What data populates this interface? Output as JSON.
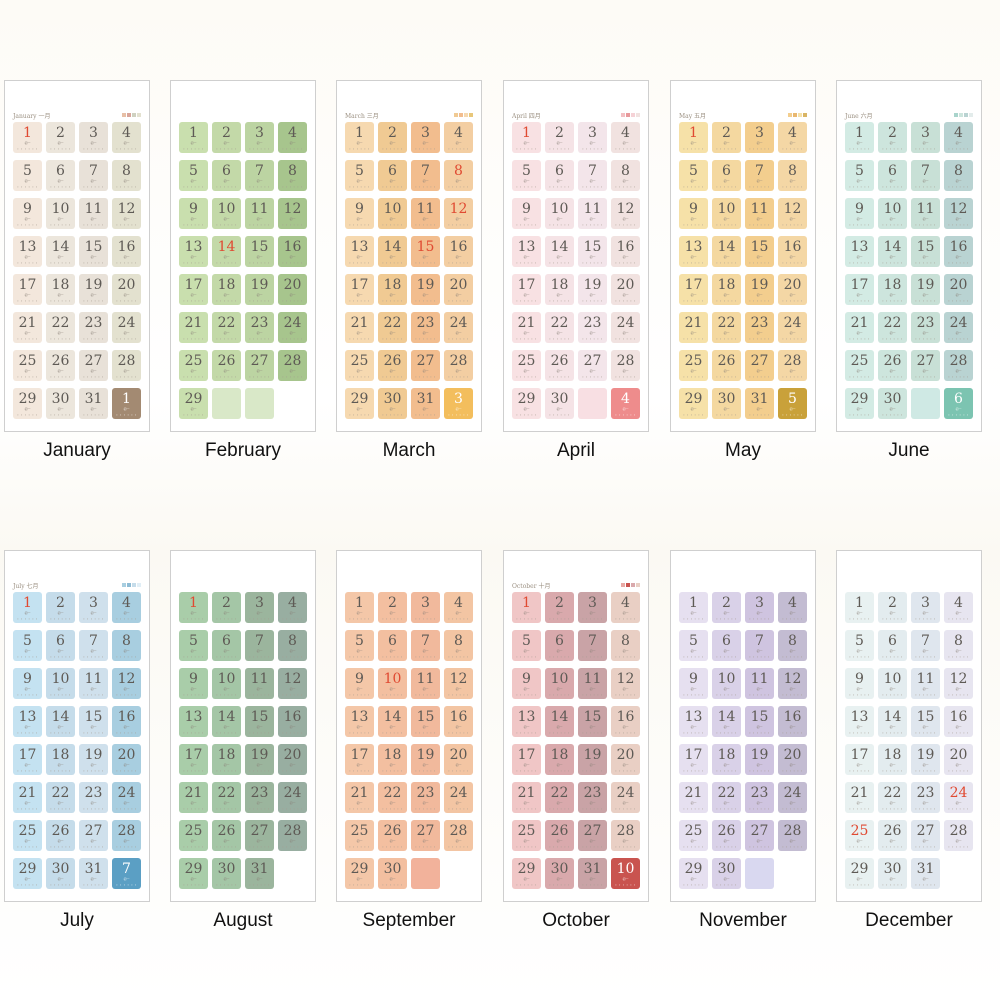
{
  "months": [
    {
      "label": "January",
      "title": "January 一月",
      "lead": 0,
      "days": 31,
      "extra": {
        "num": "1",
        "color": "#a38a72",
        "light": true
      },
      "colors": [
        "#f3e7dc",
        "#ece6dc",
        "#e8e1d8",
        "#e3e1cf"
      ],
      "red": [
        1
      ],
      "legend": [
        "#e7bfa6",
        "#d9a59a",
        "#cfd1c0",
        "#e3e1cf"
      ]
    },
    {
      "label": "February",
      "title": "",
      "lead": 0,
      "days": 29,
      "extra": null,
      "blanks": [
        "#d9e8c8",
        "#d9e8c8"
      ],
      "colors": [
        "#c9dfae",
        "#c3d9a8",
        "#bcd4a2",
        "#a7c58d"
      ],
      "red": [
        14
      ],
      "legend": []
    },
    {
      "label": "March",
      "title": "March 三月",
      "lead": 0,
      "days": 31,
      "extra": {
        "num": "3",
        "color": "#f3be5d",
        "light": true
      },
      "colors": [
        "#f6d9b0",
        "#f0ca93",
        "#f2bd8e",
        "#f3cea2"
      ],
      "red": [
        8,
        12,
        15
      ],
      "legend": [
        "#f0ca93",
        "#f2bd8e",
        "#f6d9b0",
        "#e8c77a"
      ]
    },
    {
      "label": "April",
      "title": "April 四月",
      "lead": 0,
      "days": 30,
      "extra": {
        "num": "4",
        "color": "#ee8c8c",
        "light": true
      },
      "blanks": [
        "#f8dfe3"
      ],
      "colors": [
        "#f8e1e3",
        "#f5e3e6",
        "#f3e5ea",
        "#f1e2e0"
      ],
      "red": [
        1
      ],
      "legend": [
        "#f3c0c3",
        "#e89a9c",
        "#f5d2d6",
        "#f1e2e0"
      ]
    },
    {
      "label": "May",
      "title": "May 五月",
      "lead": 0,
      "days": 31,
      "extra": {
        "num": "5",
        "color": "#c9a13a",
        "light": true
      },
      "colors": [
        "#f6e1a8",
        "#f4d8a0",
        "#f3ce8e",
        "#f4d7a5"
      ],
      "red": [
        1
      ],
      "legend": [
        "#f3ce8e",
        "#e9b870",
        "#f6e1a8",
        "#d9b565"
      ]
    },
    {
      "label": "June",
      "title": "June 六月",
      "lead": 0,
      "days": 30,
      "extra": {
        "num": "6",
        "color": "#7cc4b1",
        "light": true
      },
      "blanks": [
        "#cfe9e4"
      ],
      "colors": [
        "#d3ebe4",
        "#cde5dd",
        "#c8e0d6",
        "#b9d3d2"
      ],
      "red": [],
      "legend": [
        "#a9d4cc",
        "#cde5dd",
        "#b9d3d2",
        "#e3eceb"
      ]
    },
    {
      "label": "July",
      "title": "July 七月",
      "lead": 0,
      "days": 31,
      "extra": {
        "num": "7",
        "color": "#5b9fc4",
        "light": true
      },
      "colors": [
        "#c4e2f1",
        "#c5dcea",
        "#cfe0ec",
        "#a8cee0"
      ],
      "red": [
        1
      ],
      "legend": [
        "#a8cee0",
        "#8fbcd5",
        "#c5dcea",
        "#e0eef6"
      ]
    },
    {
      "label": "August",
      "title": "",
      "lead": 0,
      "days": 31,
      "extra": null,
      "colors": [
        "#a9cda9",
        "#a4c6a6",
        "#9bb59d",
        "#98aea1"
      ],
      "red": [
        1
      ],
      "legend": []
    },
    {
      "label": "September",
      "title": "",
      "lead": 0,
      "days": 30,
      "extra": null,
      "blanks": [
        "#f2b29b"
      ],
      "colors": [
        "#f4c7a8",
        "#f3bfa0",
        "#f1b99c",
        "#f3c5a3"
      ],
      "red": [
        10
      ],
      "legend": []
    },
    {
      "label": "October",
      "title": "October 十月",
      "lead": 0,
      "days": 31,
      "extra": {
        "num": "10",
        "color": "#c9544f",
        "light": true
      },
      "colors": [
        "#f0c6c6",
        "#d9a9ac",
        "#c9a3a6",
        "#e9cfc4"
      ],
      "red": [
        1
      ],
      "legend": [
        "#e9aaa5",
        "#c9544f",
        "#d9a9ac",
        "#e9cfc4"
      ]
    },
    {
      "label": "November",
      "title": "",
      "lead": 0,
      "days": 30,
      "extra": null,
      "blanks": [
        "#d9d8f0"
      ],
      "colors": [
        "#e6e0f0",
        "#d9d1e8",
        "#cfc4e0",
        "#c3bcd2"
      ],
      "red": [],
      "legend": []
    },
    {
      "label": "December",
      "title": "",
      "lead": 0,
      "days": 31,
      "extra": null,
      "colors": [
        "#e8f1f1",
        "#e3ecef",
        "#dfe6ee",
        "#e7e5f0"
      ],
      "red": [
        24,
        25
      ],
      "legend": []
    }
  ],
  "day_subtext": "初一",
  "dots": "• • • • • •"
}
